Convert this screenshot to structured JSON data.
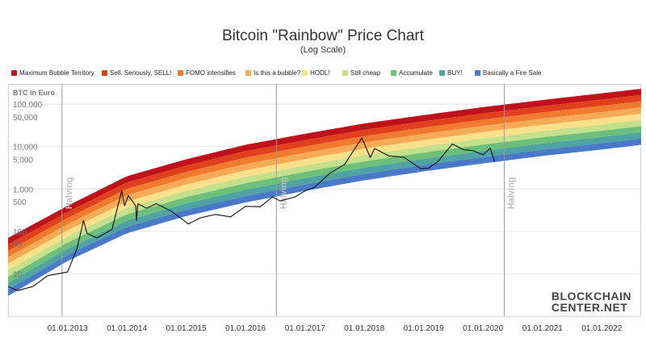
{
  "chart_data": {
    "type": "area",
    "title": "Bitcoin \"Rainbow\" Price Chart",
    "subtitle": "(Log Scale)",
    "ylabel": "BTC in Euro",
    "y_scale": "log",
    "ylim": [
      1,
      300000
    ],
    "xlim": [
      "2012-01-01",
      "2022-08-31"
    ],
    "x_ticks": [
      "01.01.2013",
      "01.01.2014",
      "01.01.2015",
      "01.01.2016",
      "01.01.2017",
      "01.01.2018",
      "01.01.2019",
      "01.01.2020",
      "01.01.2021",
      "01.01.2022"
    ],
    "y_ticks": [
      {
        "value": 100000,
        "label": "100,000"
      },
      {
        "value": 50000,
        "label": "50,000"
      },
      {
        "value": 10000,
        "label": "10,000"
      },
      {
        "value": 5000,
        "label": "5,000"
      },
      {
        "value": 1000,
        "label": "1,000"
      },
      {
        "value": 500,
        "label": "500"
      },
      {
        "value": 100,
        "label": "100"
      },
      {
        "value": 50,
        "label": "50"
      },
      {
        "value": 10,
        "label": "10"
      }
    ],
    "bands": [
      {
        "name": "Maximum Bubble Territory",
        "color": "#c0121a"
      },
      {
        "name": "Sell. Seriously, SELL!",
        "color": "#e0401d"
      },
      {
        "name": "FOMO intensifies",
        "color": "#f07a2e"
      },
      {
        "name": "Is this a bubble?",
        "color": "#f5ab55"
      },
      {
        "name": "HODL!",
        "color": "#fbe08a"
      },
      {
        "name": "Still cheap",
        "color": "#c5e08a"
      },
      {
        "name": "Accumulate",
        "color": "#6cc07a"
      },
      {
        "name": "BUY!",
        "color": "#4fa3a3"
      },
      {
        "name": "Basically a Fire Sale",
        "color": "#4a79c8"
      }
    ],
    "band_floor": [
      {
        "date": "2012-01-01",
        "value": 3
      },
      {
        "date": "2013-01-01",
        "value": 20
      },
      {
        "date": "2014-01-01",
        "value": 90
      },
      {
        "date": "2015-01-01",
        "value": 230
      },
      {
        "date": "2016-01-01",
        "value": 480
      },
      {
        "date": "2017-01-01",
        "value": 900
      },
      {
        "date": "2018-01-01",
        "value": 1600
      },
      {
        "date": "2019-01-01",
        "value": 2600
      },
      {
        "date": "2020-01-01",
        "value": 4000
      },
      {
        "date": "2021-01-01",
        "value": 6000
      },
      {
        "date": "2022-01-01",
        "value": 8500
      },
      {
        "date": "2022-08-31",
        "value": 11000
      }
    ],
    "band_ceiling": [
      {
        "date": "2012-01-01",
        "value": 70
      },
      {
        "date": "2013-01-01",
        "value": 400
      },
      {
        "date": "2014-01-01",
        "value": 2000
      },
      {
        "date": "2015-01-01",
        "value": 5000
      },
      {
        "date": "2016-01-01",
        "value": 11000
      },
      {
        "date": "2017-01-01",
        "value": 20000
      },
      {
        "date": "2018-01-01",
        "value": 35000
      },
      {
        "date": "2019-01-01",
        "value": 55000
      },
      {
        "date": "2020-01-01",
        "value": 85000
      },
      {
        "date": "2021-01-01",
        "value": 125000
      },
      {
        "date": "2022-01-01",
        "value": 180000
      },
      {
        "date": "2022-08-31",
        "value": 230000
      }
    ],
    "series": [
      {
        "points": [
          {
            "date": "2012-01-01",
            "value": 5
          },
          {
            "date": "2012-03-01",
            "value": 4
          },
          {
            "date": "2012-06-01",
            "value": 5
          },
          {
            "date": "2012-09-01",
            "value": 9
          },
          {
            "date": "2013-01-01",
            "value": 11
          },
          {
            "date": "2013-03-01",
            "value": 40
          },
          {
            "date": "2013-04-09",
            "value": 180
          },
          {
            "date": "2013-05-01",
            "value": 90
          },
          {
            "date": "2013-07-01",
            "value": 70
          },
          {
            "date": "2013-10-01",
            "value": 110
          },
          {
            "date": "2013-11-30",
            "value": 900
          },
          {
            "date": "2013-12-18",
            "value": 400
          },
          {
            "date": "2014-01-10",
            "value": 700
          },
          {
            "date": "2014-02-25",
            "value": 400
          },
          {
            "date": "2014-03-01",
            "value": 180
          },
          {
            "date": "2014-03-10",
            "value": 450
          },
          {
            "date": "2014-05-01",
            "value": 350
          },
          {
            "date": "2014-07-01",
            "value": 450
          },
          {
            "date": "2014-10-01",
            "value": 300
          },
          {
            "date": "2015-01-14",
            "value": 150
          },
          {
            "date": "2015-04-01",
            "value": 210
          },
          {
            "date": "2015-07-01",
            "value": 250
          },
          {
            "date": "2015-10-01",
            "value": 220
          },
          {
            "date": "2016-01-01",
            "value": 390
          },
          {
            "date": "2016-04-01",
            "value": 380
          },
          {
            "date": "2016-06-15",
            "value": 650
          },
          {
            "date": "2016-08-01",
            "value": 520
          },
          {
            "date": "2016-11-01",
            "value": 650
          },
          {
            "date": "2017-01-01",
            "value": 900
          },
          {
            "date": "2017-03-01",
            "value": 1100
          },
          {
            "date": "2017-06-01",
            "value": 2300
          },
          {
            "date": "2017-09-01",
            "value": 3800
          },
          {
            "date": "2017-12-17",
            "value": 16000
          },
          {
            "date": "2018-02-06",
            "value": 5500
          },
          {
            "date": "2018-03-05",
            "value": 9000
          },
          {
            "date": "2018-06-01",
            "value": 6000
          },
          {
            "date": "2018-09-01",
            "value": 5600
          },
          {
            "date": "2018-12-15",
            "value": 3000
          },
          {
            "date": "2019-02-01",
            "value": 3100
          },
          {
            "date": "2019-04-01",
            "value": 4500
          },
          {
            "date": "2019-06-26",
            "value": 11500
          },
          {
            "date": "2019-09-01",
            "value": 8500
          },
          {
            "date": "2019-11-01",
            "value": 8000
          },
          {
            "date": "2020-01-01",
            "value": 6400
          },
          {
            "date": "2020-02-14",
            "value": 9200
          },
          {
            "date": "2020-03-13",
            "value": 4400
          }
        ]
      }
    ],
    "halving_dates": [
      "2012-11-28",
      "2016-07-09",
      "2020-05-11"
    ],
    "halving_label": "Halving"
  },
  "watermark": {
    "line1": "BLOCKCHAIN",
    "line2": "CENTER.NET"
  }
}
